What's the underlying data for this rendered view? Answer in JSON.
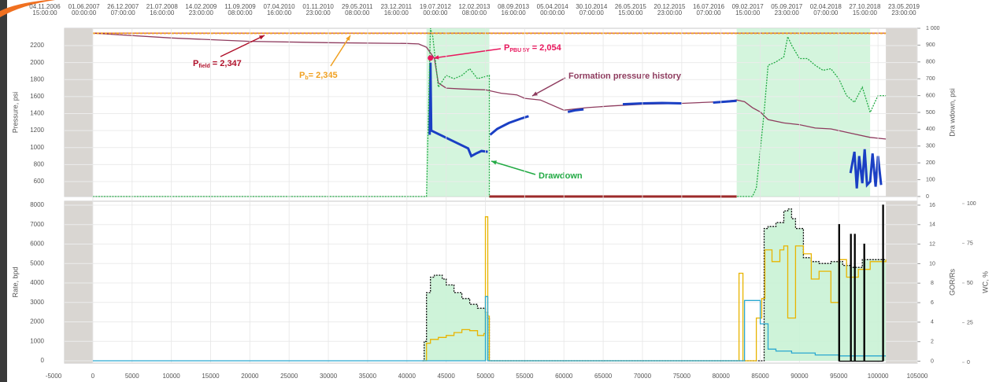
{
  "chart_data": [
    {
      "type": "line",
      "y_label": "Pressure, psi",
      "y2_label": "Dra wdown, psi",
      "xlim": [
        -3600,
        105000
      ],
      "ylim": [
        424,
        2404
      ],
      "yticks": [
        600,
        800,
        1000,
        1200,
        1400,
        1600,
        1800,
        2000,
        2200
      ],
      "y2lim": [
        0,
        1000
      ],
      "y2ticks": [
        0,
        100,
        200,
        300,
        400,
        500,
        600,
        700,
        800,
        900,
        {
          "value": 1000,
          "label": "1 000"
        }
      ],
      "top_axis_labels": [
        {
          "date": "04.11.2006",
          "time": "15:00:00"
        },
        {
          "date": "01.06.2007",
          "time": "00:00:00"
        },
        {
          "date": "26.12.2007",
          "time": "07:00:00"
        },
        {
          "date": "21.07.2008",
          "time": "16:00:00"
        },
        {
          "date": "14.02.2009",
          "time": "23:00:00"
        },
        {
          "date": "11.09.2009",
          "time": "08:00:00"
        },
        {
          "date": "07.04.2010",
          "time": "16:00:00"
        },
        {
          "date": "01.11.2010",
          "time": "23:00:00"
        },
        {
          "date": "29.05.2011",
          "time": "08:00:00"
        },
        {
          "date": "23.12.2011",
          "time": "16:00:00"
        },
        {
          "date": "19.07.2012",
          "time": "00:00:00"
        },
        {
          "date": "12.02.2013",
          "time": "08:00:00"
        },
        {
          "date": "08.09.2013",
          "time": "16:00:00"
        },
        {
          "date": "05.04.2014",
          "time": "00:00:00"
        },
        {
          "date": "30.10.2014",
          "time": "07:00:00"
        },
        {
          "date": "26.05.2015",
          "time": "15:00:00"
        },
        {
          "date": "20.12.2015",
          "time": "23:00:00"
        },
        {
          "date": "16.07.2016",
          "time": "07:00:00"
        },
        {
          "date": "09.02.2017",
          "time": "15:00:00"
        },
        {
          "date": "05.09.2017",
          "time": "23:00:00"
        },
        {
          "date": "02.04.2018",
          "time": "07:00:00"
        },
        {
          "date": "27.10.2018",
          "time": "15:00:00"
        },
        {
          "date": "23.05.2019",
          "time": "23:00:00"
        }
      ],
      "inactive_ranges": [
        [
          -3600,
          0
        ],
        [
          101000,
          105000
        ]
      ],
      "highlight_ranges": [
        [
          42500,
          50500
        ],
        [
          82000,
          99000
        ]
      ],
      "reference_lines": [
        {
          "label": {
            "main": "P",
            "sub": "field",
            "rest": " = 2,347"
          },
          "value": 2347,
          "color": "#b0102a"
        },
        {
          "label": {
            "main": "P",
            "sub": "b",
            "rest": "= 2,345"
          },
          "value": 2345,
          "color": "#f0a020"
        }
      ],
      "points": [
        {
          "label": {
            "main": "P",
            "sub": "PBU   5Y",
            "rest": "  = 2,054"
          },
          "x": 43000,
          "value": 2054,
          "color": "#e8175d"
        }
      ],
      "series": [
        {
          "name": "Formation pressure history",
          "color": "#8e3b5e",
          "x": [
            0,
            10000,
            20000,
            30000,
            40000,
            41500,
            42500,
            43500,
            44000,
            45000,
            47000,
            50000,
            52000,
            54000,
            55000,
            57000,
            60000,
            63000,
            66000,
            70000,
            75000,
            80000,
            82000,
            83000,
            84000,
            85000,
            86000,
            88000,
            90000,
            92000,
            94000,
            95000,
            97000,
            99000,
            101000
          ],
          "values": [
            2347,
            2290,
            2250,
            2235,
            2225,
            2220,
            2180,
            2050,
            1760,
            1700,
            1690,
            1680,
            1640,
            1620,
            1580,
            1560,
            1440,
            1470,
            1490,
            1510,
            1520,
            1540,
            1560,
            1540,
            1470,
            1420,
            1330,
            1290,
            1270,
            1230,
            1220,
            1200,
            1160,
            1120,
            1100
          ]
        },
        {
          "color": "#1a3fc4",
          "width": 3,
          "x": [
            42900,
            43000,
            43100,
            47800,
            48200,
            48800,
            49500,
            50300,
            50300,
            50600,
            51500,
            53000,
            54500,
            55500,
            56000,
            60500,
            61500,
            62500,
            63000,
            67500,
            70000,
            72500,
            75000,
            75500,
            79000,
            80500,
            82000,
            82500,
            96500,
            97000,
            97300,
            97600,
            98000,
            98300,
            98600,
            99000,
            99300,
            99700,
            100000,
            100400
          ],
          "values": [
            1150,
            2000,
            1200,
            990,
            900,
            930,
            960,
            950,
            null,
            1150,
            1220,
            1290,
            1340,
            1370,
            null,
            1420,
            1440,
            1450,
            null,
            1510,
            1520,
            1525,
            1520,
            null,
            1530,
            1540,
            1550,
            null,
            700,
            950,
            520,
            900,
            580,
            980,
            560,
            600,
            930,
            540,
            900,
            560
          ]
        },
        {
          "name": "Drawdown",
          "color": "#22aa44",
          "axis": "y2",
          "dash": true,
          "x": [
            0,
            42500,
            43000,
            43300,
            44000,
            45000,
            46000,
            47000,
            48000,
            49000,
            50500,
            50500,
            84000,
            84500,
            85500,
            86000,
            87000,
            88000,
            88500,
            89000,
            90000,
            91000,
            92000,
            93000,
            94000,
            95000,
            96000,
            97000,
            98000,
            99000,
            100000,
            101000
          ],
          "values": [
            0,
            0,
            1000,
            950,
            650,
            720,
            700,
            720,
            760,
            700,
            720,
            0,
            0,
            50,
            500,
            780,
            800,
            830,
            950,
            900,
            820,
            820,
            780,
            750,
            760,
            700,
            600,
            560,
            650,
            500,
            600,
            600
          ]
        },
        {
          "color": "#9c2a2a",
          "axis": "y2",
          "width": 3,
          "x": [
            50500,
            82000
          ],
          "values": [
            0,
            0
          ]
        }
      ]
    },
    {
      "type": "line",
      "step": true,
      "y_label": "Rate, bpd",
      "y2_label": "GOR/Rs",
      "y3_label": "WC, %",
      "xlim": [
        -3600,
        105000
      ],
      "xticks": [
        -5000,
        0,
        5000,
        10000,
        15000,
        20000,
        25000,
        30000,
        35000,
        40000,
        45000,
        50000,
        55000,
        60000,
        65000,
        70000,
        75000,
        80000,
        85000,
        90000,
        95000,
        100000,
        105000
      ],
      "ylim": [
        -120,
        8200
      ],
      "yticks": [
        0,
        1000,
        2000,
        3000,
        4000,
        5000,
        6000,
        7000,
        8000
      ],
      "y2lim": [
        -0.2,
        16.4
      ],
      "y2ticks": [
        0,
        2,
        4,
        6,
        8,
        10,
        12,
        14,
        16
      ],
      "y3lim": [
        -0.5,
        101.5
      ],
      "y3ticks": [
        0,
        25,
        50,
        75,
        100
      ],
      "inactive_ranges": [
        [
          -3600,
          0
        ],
        [
          101000,
          105000
        ]
      ],
      "series": [
        {
          "color": "#111111",
          "fill": "#c9f2d5",
          "dash": true,
          "x": [
            42000,
            42200,
            42500,
            43000,
            43500,
            44500,
            45000,
            46000,
            47000,
            48000,
            49000,
            50000,
            50300,
            50500,
            85000,
            85500,
            86000,
            87000,
            88000,
            88500,
            89000,
            89500,
            90500,
            91500,
            92500,
            94000,
            95500,
            96500,
            98000,
            99000,
            100500,
            101000
          ],
          "values": [
            0,
            1000,
            3500,
            4300,
            4400,
            4200,
            3900,
            3500,
            3200,
            2900,
            2700,
            2500,
            2200,
            0,
            0,
            6800,
            6900,
            7100,
            7700,
            7800,
            7300,
            6800,
            5300,
            5100,
            5000,
            5100,
            4900,
            4800,
            5200,
            5200,
            5200,
            5200
          ]
        },
        {
          "color": "#e8b400",
          "x": [
            42000,
            42500,
            43000,
            44000,
            45000,
            46000,
            47000,
            48000,
            49000,
            49800,
            50000,
            50300,
            50500,
            82000,
            82300,
            82800,
            84000,
            84500,
            85200,
            85600,
            86500,
            87500,
            88000,
            88500,
            89500,
            90500,
            91500,
            92500,
            94000,
            95000,
            96000,
            97500,
            99000,
            101000
          ],
          "values": [
            0,
            900,
            1100,
            1200,
            1300,
            1450,
            1600,
            1550,
            1300,
            1400,
            7400,
            2300,
            0,
            0,
            4500,
            0,
            0,
            2200,
            3200,
            5700,
            5100,
            5700,
            5900,
            2200,
            5900,
            5500,
            4200,
            4600,
            3000,
            5200,
            4300,
            4700,
            5100,
            5200
          ]
        },
        {
          "color": "#2aa8d0",
          "x": [
            0,
            49800,
            50000,
            50300,
            82800,
            83000,
            84500,
            85000,
            86000,
            87000,
            89000,
            92000,
            95000,
            101000
          ],
          "values": [
            0,
            0,
            3300,
            0,
            0,
            3100,
            3100,
            1900,
            600,
            500,
            400,
            300,
            250,
            250
          ]
        },
        {
          "color": "#000000",
          "axis": "y2",
          "x": [
            95000,
            95000,
            95100,
            96500,
            96500,
            96600,
            97000,
            97000,
            97100,
            98200,
            98200,
            98300,
            100600,
            100600,
            100700
          ],
          "values": [
            0,
            14,
            0,
            0,
            13,
            0,
            0,
            13,
            0,
            0,
            12,
            0,
            0,
            16,
            0
          ]
        }
      ]
    }
  ]
}
